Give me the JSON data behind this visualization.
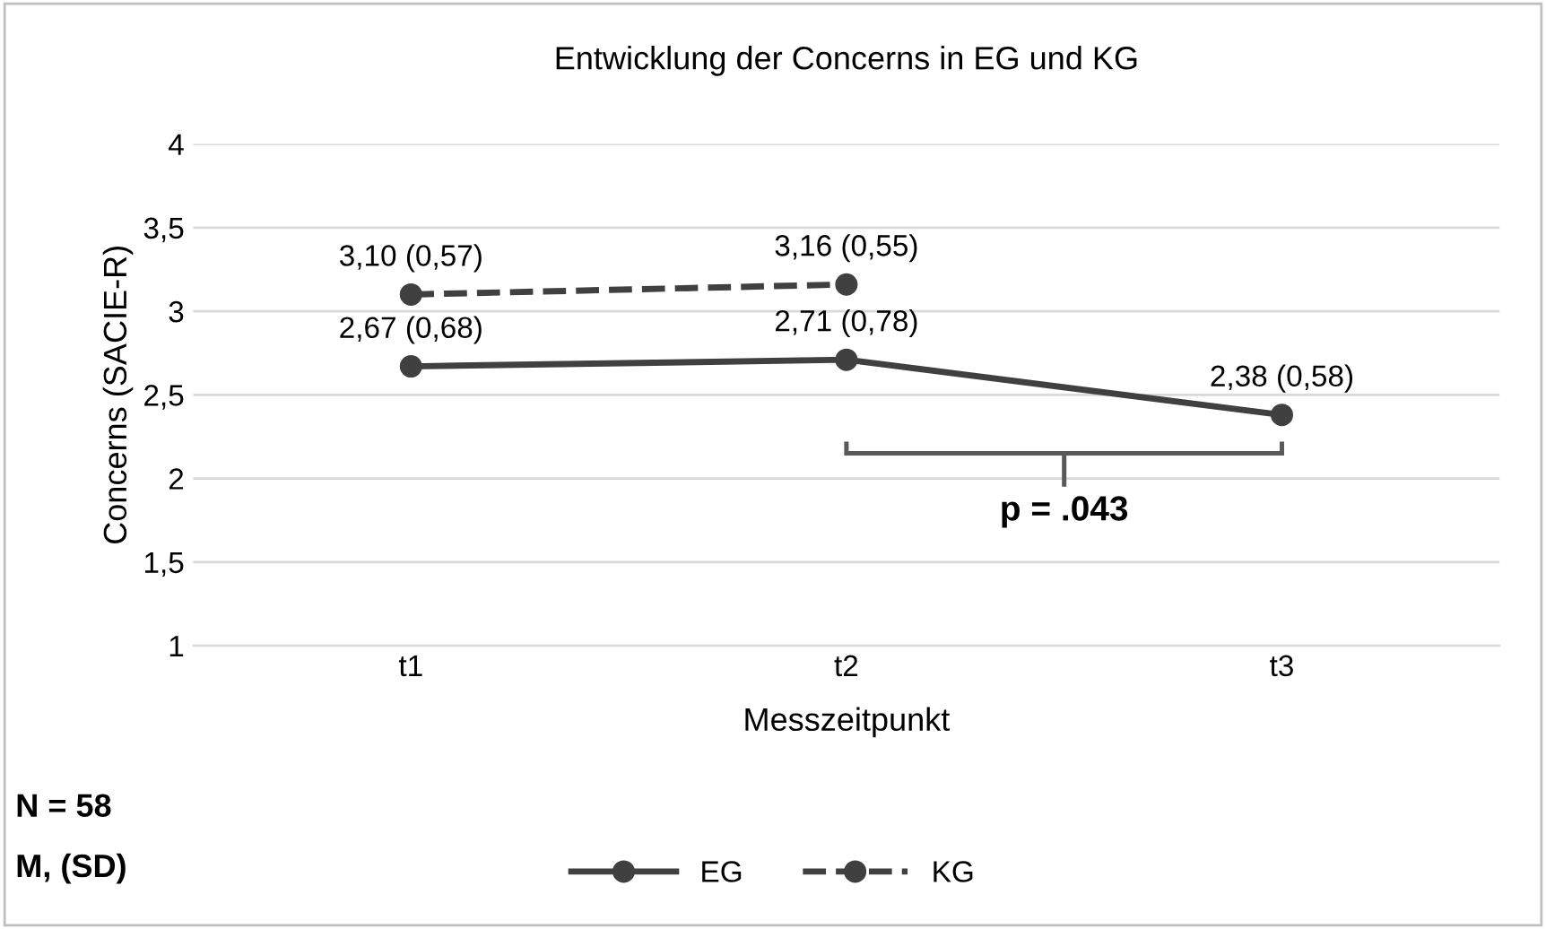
{
  "chart_data": {
    "type": "line",
    "title": "Entwicklung der Concerns in EG und KG",
    "xlabel": "Messzeitpunkt",
    "ylabel": "Concerns (SACIE-R)",
    "categories": [
      "t1",
      "t2",
      "t3"
    ],
    "series": [
      {
        "name": "EG",
        "color": "#404040",
        "line_style": "solid",
        "values": [
          2.67,
          2.71,
          2.38
        ],
        "value_labels": [
          "2,67 (0,68)",
          "2,71 (0,78)",
          "2,38 (0,58)"
        ]
      },
      {
        "name": "KG",
        "color": "#404040",
        "line_style": "dashed",
        "values": [
          3.1,
          3.16,
          null
        ],
        "value_labels": [
          "3,10 (0,57)",
          "3,16 (0,55)",
          null
        ]
      }
    ],
    "ylim": [
      1,
      4
    ],
    "yticks": [
      1,
      {
        "value": 1.5,
        "label": "1,5"
      },
      2,
      {
        "value": 2.5,
        "label": "2,5"
      },
      3,
      {
        "value": 3.5,
        "label": "3,5"
      },
      4
    ],
    "grid": "y",
    "legend": "bottom",
    "marker": "circle",
    "annotations": [
      "p = .043",
      "N = 58",
      "M, (SD)"
    ]
  }
}
